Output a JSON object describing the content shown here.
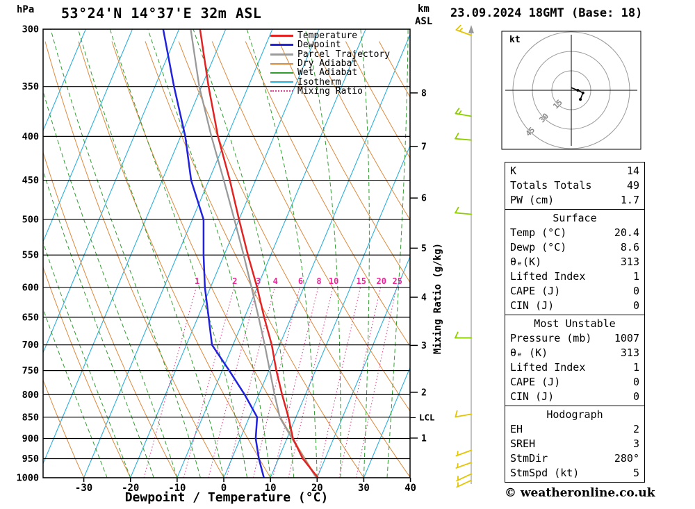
{
  "header": {
    "pressure_unit": "hPa",
    "title": "53°24'N 14°37'E 32m ASL",
    "alt_unit_km": "km",
    "alt_unit_asl": "ASL",
    "datetime": "23.09.2024 18GMT (Base: 18)"
  },
  "legend": [
    {
      "label": "Temperature",
      "color_key": "temperature",
      "style": "solid",
      "weight": 3
    },
    {
      "label": "Dewpoint",
      "color_key": "dewpoint",
      "style": "solid",
      "weight": 3
    },
    {
      "label": "Parcel Trajectory",
      "color_key": "parcel",
      "style": "solid",
      "weight": 3
    },
    {
      "label": "Dry Adiabat",
      "color_key": "dry_adiabat",
      "style": "solid",
      "weight": 2
    },
    {
      "label": "Wet Adiabat",
      "color_key": "wet_adiabat",
      "style": "solid",
      "weight": 2
    },
    {
      "label": "Isotherm",
      "color_key": "isotherm",
      "style": "solid",
      "weight": 2
    },
    {
      "label": "Mixing Ratio",
      "color_key": "mixing_ratio",
      "style": "dotted",
      "weight": 2
    }
  ],
  "axes": {
    "pressure_ticks": [
      300,
      350,
      400,
      450,
      500,
      550,
      600,
      650,
      700,
      750,
      800,
      850,
      900,
      950,
      1000
    ],
    "temp_ticks": [
      -30,
      -20,
      -10,
      0,
      10,
      20,
      30,
      40
    ],
    "xlabel": "Dewpoint / Temperature (°C)",
    "km_ticks": [
      {
        "km": 8,
        "p": 356
      },
      {
        "km": 7,
        "p": 411
      },
      {
        "km": 6,
        "p": 472
      },
      {
        "km": 5,
        "p": 540
      },
      {
        "km": 4,
        "p": 616
      },
      {
        "km": 3,
        "p": 701
      },
      {
        "km": 2,
        "p": 795
      },
      {
        "km": 1,
        "p": 899
      }
    ],
    "lcl": {
      "label": "LCL",
      "p": 851
    },
    "mixing_axis_label": "Mixing Ratio (g/kg)",
    "mixing_ratio_labels": [
      1,
      2,
      3,
      4,
      6,
      8,
      10,
      15,
      20,
      25
    ]
  },
  "chart_data": {
    "type": "skewt_sounding",
    "title": "53°24'N 14°37'E 32m ASL",
    "valid_time": "23.09.2024 18GMT (Base: 18)",
    "xlabel": "Dewpoint / Temperature (°C)",
    "x_range_C": [
      -39,
      40
    ],
    "pressure_range_hPa": [
      300,
      1000
    ],
    "series": [
      {
        "key": "temperature",
        "name": "Temperature",
        "pressure_hPa": [
          1000,
          950,
          900,
          850,
          800,
          750,
          700,
          650,
          600,
          550,
          500,
          450,
          400,
          350,
          300
        ],
        "values_C": [
          20.2,
          15.2,
          11.3,
          8.4,
          5.0,
          1.6,
          -1.7,
          -5.8,
          -10.0,
          -14.9,
          -20.0,
          -25.5,
          -32.0,
          -38.5,
          -45.5
        ]
      },
      {
        "key": "dewpoint",
        "name": "Dewpoint",
        "pressure_hPa": [
          1000,
          950,
          900,
          850,
          800,
          750,
          700,
          650,
          600,
          550,
          500,
          450,
          400,
          350,
          300
        ],
        "values_C": [
          8.6,
          5.8,
          3.3,
          1.7,
          -3.0,
          -8.5,
          -14.5,
          -17.7,
          -21.2,
          -24.4,
          -27.6,
          -33.8,
          -39.0,
          -45.9,
          -53.4
        ]
      },
      {
        "key": "parcel",
        "name": "Parcel Trajectory",
        "pressure_hPa": [
          1007,
          950,
          900,
          851,
          800,
          750,
          700,
          650,
          600,
          550,
          500,
          450,
          400,
          350,
          300
        ],
        "values_C": [
          20.4,
          15.5,
          11.1,
          6.6,
          3.4,
          0.2,
          -3.2,
          -7.0,
          -11.2,
          -15.8,
          -21.0,
          -26.8,
          -33.4,
          -40.5,
          -47.5
        ]
      }
    ],
    "background": {
      "isotherm_step_C": 10,
      "dry_adiabat_step_C": 10,
      "wet_adiabat_step_C": 5,
      "mixing_ratio_lines_g_kg": [
        1,
        2,
        3,
        4,
        6,
        8,
        10,
        15,
        20,
        25
      ]
    }
  },
  "hodograph": {
    "unit": "kt",
    "rings_kt": [
      15,
      30,
      45
    ],
    "trace_kt": [
      {
        "u": 0,
        "v": 2
      },
      {
        "u": 5,
        "v": 0
      },
      {
        "u": 9,
        "v": -2
      },
      {
        "u": 7,
        "v": -7
      }
    ]
  },
  "wind_barbs": [
    {
      "p": 305,
      "dir": 290,
      "spd": 15,
      "color_key": "barb_yellow"
    },
    {
      "p": 379,
      "dir": 280,
      "spd": 15,
      "color_key": "barb_green"
    },
    {
      "p": 404,
      "dir": 275,
      "spd": 10,
      "color_key": "barb_green"
    },
    {
      "p": 493,
      "dir": 275,
      "spd": 10,
      "color_key": "barb_green"
    },
    {
      "p": 687,
      "dir": 270,
      "spd": 10,
      "color_key": "barb_green"
    },
    {
      "p": 843,
      "dir": 260,
      "spd": 10,
      "color_key": "barb_yellow"
    },
    {
      "p": 929,
      "dir": 250,
      "spd": 5,
      "color_key": "barb_yellow"
    },
    {
      "p": 960,
      "dir": 250,
      "spd": 5,
      "color_key": "barb_yellow"
    },
    {
      "p": 990,
      "dir": 245,
      "spd": 5,
      "color_key": "barb_yellow"
    },
    {
      "p": 1007,
      "dir": 245,
      "spd": 5,
      "color_key": "barb_yellow"
    }
  ],
  "table": {
    "sections": [
      {
        "id": "indices",
        "header": null,
        "rows": [
          [
            "K",
            "14"
          ],
          [
            "Totals Totals",
            "49"
          ],
          [
            "PW (cm)",
            "1.7"
          ]
        ]
      },
      {
        "id": "surface",
        "header": "Surface",
        "rows": [
          [
            "Temp (°C)",
            "20.4"
          ],
          [
            "Dewp (°C)",
            "8.6"
          ],
          [
            "θₑ(K)",
            "313"
          ],
          [
            "Lifted Index",
            "1"
          ],
          [
            "CAPE (J)",
            "0"
          ],
          [
            "CIN (J)",
            "0"
          ]
        ]
      },
      {
        "id": "most-unstable",
        "header": "Most Unstable",
        "rows": [
          [
            "Pressure (mb)",
            "1007"
          ],
          [
            "θₑ (K)",
            "313"
          ],
          [
            "Lifted Index",
            "1"
          ],
          [
            "CAPE (J)",
            "0"
          ],
          [
            "CIN (J)",
            "0"
          ]
        ]
      },
      {
        "id": "hodograph",
        "header": "Hodograph",
        "rows": [
          [
            "EH",
            "2"
          ],
          [
            "SREH",
            "3"
          ],
          [
            "StmDir",
            "280°"
          ],
          [
            "StmSpd (kt)",
            "5"
          ]
        ]
      }
    ]
  },
  "footer": "© weatheronline.co.uk",
  "colors": {
    "temperature": "#e32222",
    "dewpoint": "#2222dd",
    "parcel": "#9a9a9a",
    "dry_adiabat": "#dd8a3c",
    "wet_adiabat": "#2f9e2f",
    "isotherm": "#2ab0dd",
    "mixing_ratio": "#e0408e",
    "mixing_label": "#ee2299",
    "isobar": "#000000",
    "barb_yellow": "#e3c500",
    "barb_green": "#8ecf00"
  }
}
